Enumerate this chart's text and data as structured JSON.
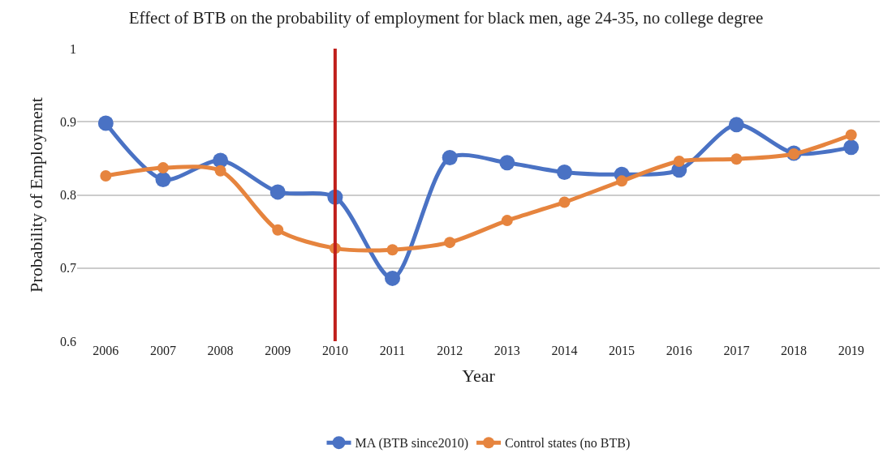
{
  "chart_data": {
    "type": "line",
    "title": "Effect of BTB on the probability of employment for black men, age 24-35, no college degree",
    "xlabel": "Year",
    "ylabel": "Probability of Employment",
    "categories": [
      "2006",
      "2007",
      "2008",
      "2009",
      "2010",
      "2011",
      "2012",
      "2013",
      "2014",
      "2015",
      "2016",
      "2017",
      "2018",
      "2019"
    ],
    "series": [
      {
        "name": "MA (BTB since2010)",
        "color": "#4a72c4",
        "values": [
          0.898,
          0.821,
          0.847,
          0.804,
          0.797,
          0.686,
          0.851,
          0.844,
          0.831,
          0.828,
          0.834,
          0.896,
          0.857,
          0.865
        ]
      },
      {
        "name": "Control states (no BTB)",
        "color": "#e6843e",
        "values": [
          0.826,
          0.837,
          0.833,
          0.752,
          0.727,
          0.725,
          0.735,
          0.765,
          0.79,
          0.819,
          0.846,
          0.849,
          0.856,
          0.882
        ]
      }
    ],
    "ylim": [
      0.6,
      1
    ],
    "yticks": [
      0.6,
      0.7,
      0.8,
      0.9,
      1
    ],
    "grid": "y",
    "legend": "bottom",
    "marker": "circle",
    "line_style": "solid",
    "ref_lines": [
      {
        "axis": "x",
        "value": "2010",
        "color": "#c0201c"
      }
    ]
  }
}
